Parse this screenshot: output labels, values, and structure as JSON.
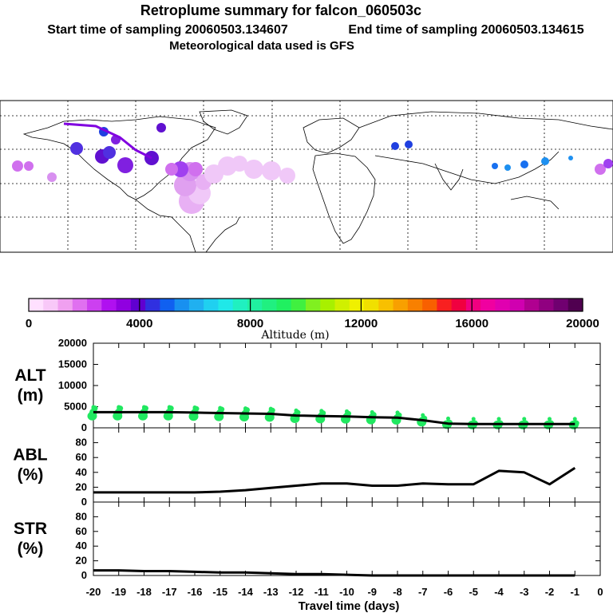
{
  "header": {
    "title": "Retroplume summary for falcon_060503c",
    "start_label": "Start time of sampling 20060503.134607",
    "end_label": "End time of sampling 20060503.134615",
    "met_label": "Meteorological data used is GFS"
  },
  "colorbar": {
    "ticks": [
      "0",
      "4000",
      "8000",
      "12000",
      "16000",
      "20000"
    ],
    "label": "Altitude (m)",
    "colors": [
      "#ffe0ff",
      "#f8c8f8",
      "#f0a0f0",
      "#e070f0",
      "#cc40f0",
      "#b010f0",
      "#9000e0",
      "#6000d0",
      "#3030e0",
      "#1060f0",
      "#1890f0",
      "#20b0f0",
      "#20d0f0",
      "#20e8e8",
      "#20f0c0",
      "#20f0a0",
      "#20f080",
      "#20f060",
      "#40f040",
      "#80f020",
      "#a8f000",
      "#d0f000",
      "#f0f000",
      "#f0e000",
      "#f8c000",
      "#f8a000",
      "#f88000",
      "#f86000",
      "#f82020",
      "#f00040",
      "#f00080",
      "#f000a0",
      "#e000b0",
      "#d000b0",
      "#b00090",
      "#900080",
      "#700070",
      "#500050"
    ]
  },
  "map": {
    "grid_color": "#000000"
  },
  "xaxis": {
    "ticks": [
      "-20",
      "-19",
      "-18",
      "-17",
      "-16",
      "-15",
      "-14",
      "-13",
      "-12",
      "-11",
      "-10",
      "-9",
      "-8",
      "-7",
      "-6",
      "-5",
      "-4",
      "-3",
      "-2",
      "-1",
      "0"
    ],
    "label": "Travel time (days)"
  },
  "chart_data": [
    {
      "type": "line",
      "name": "ALT",
      "ylabel_line1": "ALT",
      "ylabel_line2": "(m)",
      "yticks": [
        "0",
        "5000",
        "10000",
        "15000",
        "20000"
      ],
      "ylim": [
        0,
        20000
      ],
      "xlim": [
        -20,
        0
      ],
      "x": [
        -20,
        -19,
        -18,
        -17,
        -16,
        -15,
        -14,
        -13,
        -12,
        -11,
        -10,
        -9,
        -8,
        -7,
        -6,
        -5,
        -4,
        -3,
        -2,
        -1
      ],
      "values": [
        3700,
        3700,
        3700,
        3700,
        3600,
        3500,
        3400,
        3300,
        2900,
        2800,
        2700,
        2500,
        2400,
        1800,
        1000,
        900,
        900,
        900,
        900,
        900
      ],
      "scatter_color": "#20e860"
    },
    {
      "type": "line",
      "name": "ABL",
      "ylabel_line1": "ABL",
      "ylabel_line2": "(%)",
      "yticks": [
        "0",
        "20",
        "40",
        "60",
        "80"
      ],
      "ylim": [
        0,
        100
      ],
      "xlim": [
        -20,
        0
      ],
      "x": [
        -20,
        -19,
        -18,
        -17,
        -16,
        -15,
        -14,
        -13,
        -12,
        -11,
        -10,
        -9,
        -8,
        -7,
        -6,
        -5,
        -4,
        -3,
        -2,
        -1
      ],
      "values": [
        13,
        13,
        13,
        13,
        13,
        14,
        16,
        19,
        22,
        25,
        25,
        22,
        22,
        25,
        24,
        24,
        42,
        40,
        24,
        46
      ]
    },
    {
      "type": "line",
      "name": "STR",
      "ylabel_line1": "STR",
      "ylabel_line2": "(%)",
      "yticks": [
        "0",
        "20",
        "40",
        "60",
        "80"
      ],
      "ylim": [
        0,
        100
      ],
      "xlim": [
        -20,
        0
      ],
      "x": [
        -20,
        -19,
        -18,
        -17,
        -16,
        -15,
        -14,
        -13,
        -12,
        -11,
        -10,
        -9,
        -8,
        -7,
        -6,
        -5,
        -4,
        -3,
        -2,
        -1
      ],
      "values": [
        7,
        7,
        6,
        6,
        5,
        4,
        4,
        3,
        2,
        2,
        1,
        0,
        0,
        0,
        0,
        0,
        0,
        0,
        0,
        0
      ]
    }
  ]
}
